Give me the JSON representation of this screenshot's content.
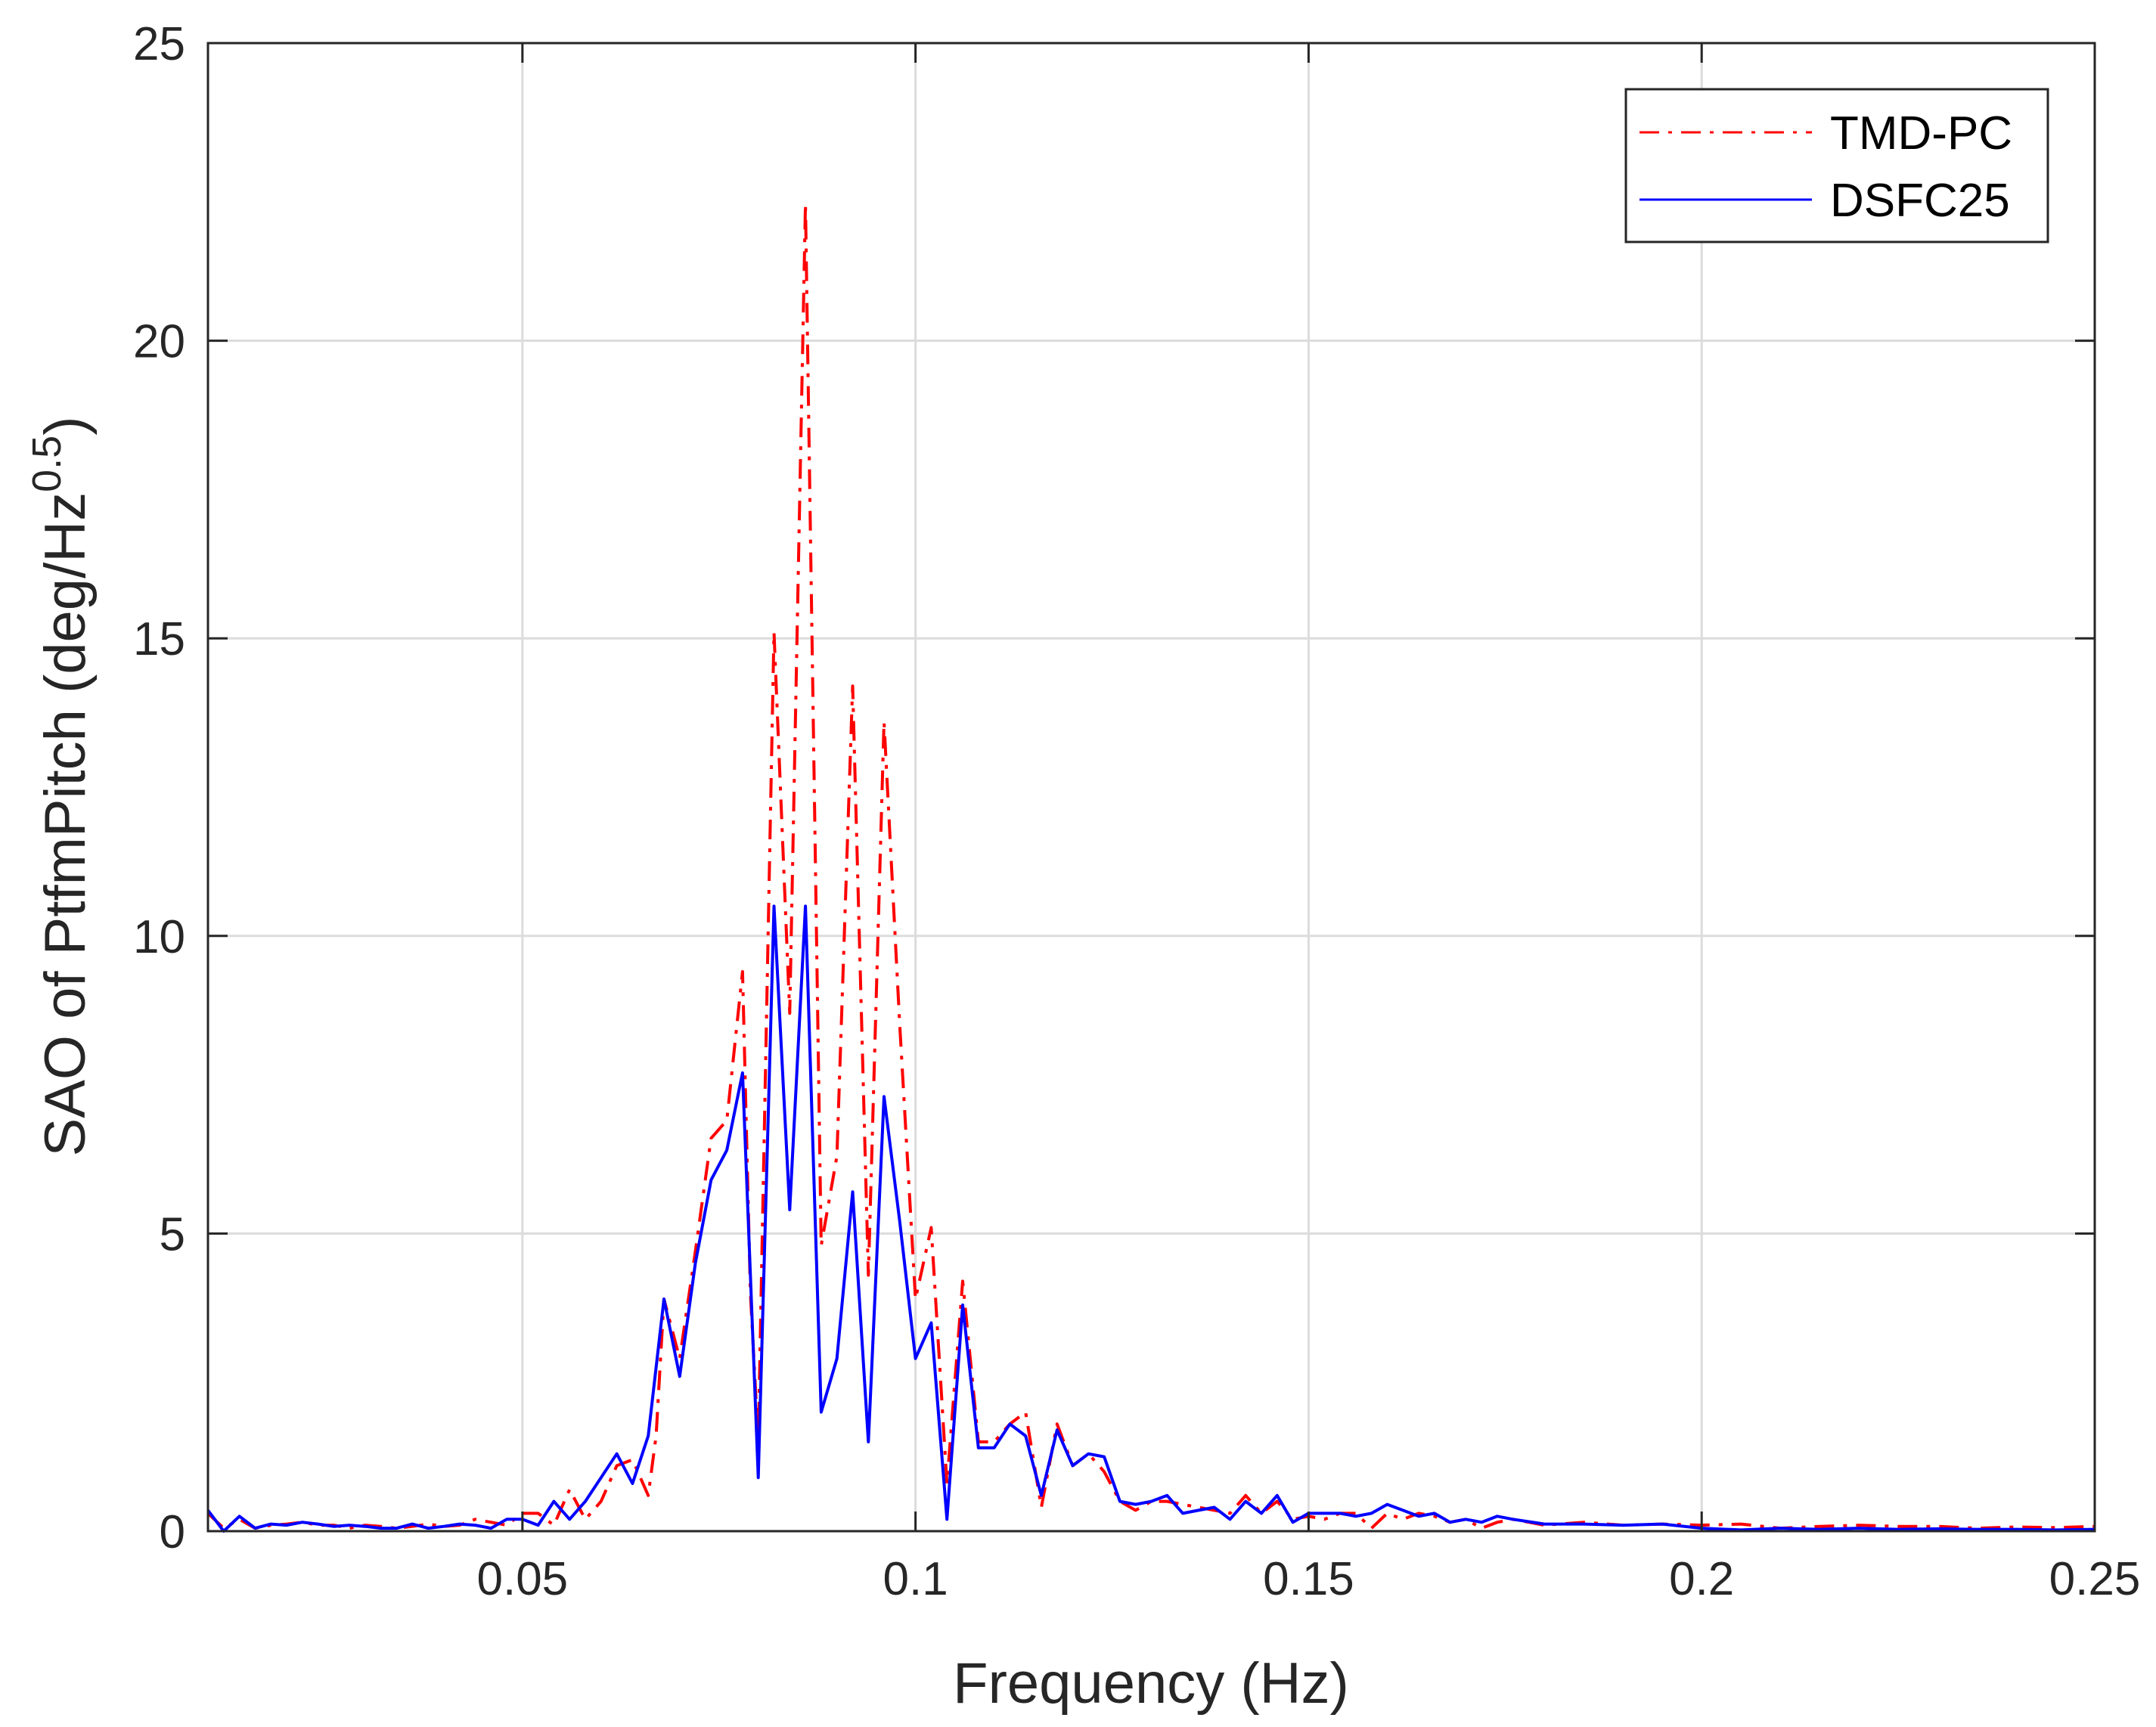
{
  "chart_data": {
    "type": "line",
    "title": "",
    "xlabel": "Frequency (Hz)",
    "ylabel": {
      "main": "SAO of PtfmPitch (deg/Hz",
      "sup": "0.5",
      "close": ")"
    },
    "xlim": [
      0.01,
      0.25
    ],
    "ylim": [
      0,
      25
    ],
    "x_ticks": [
      0.05,
      0.1,
      0.15,
      0.2,
      0.25
    ],
    "x_tick_labels": [
      "0.05",
      "0.1",
      "0.15",
      "0.2",
      "0.25"
    ],
    "y_ticks": [
      0,
      5,
      10,
      15,
      20,
      25
    ],
    "y_tick_labels": [
      "0",
      "5",
      "10",
      "15",
      "20",
      "25"
    ],
    "grid": true,
    "legend_position": "top-right",
    "series": [
      {
        "name": "TMD-PC",
        "color": "#ff0000",
        "style": "dash-dot",
        "points": [
          [
            0.01,
            0.3
          ],
          [
            0.012,
            0.05
          ],
          [
            0.014,
            0.2
          ],
          [
            0.016,
            0.05
          ],
          [
            0.018,
            0.1
          ],
          [
            0.02,
            0.12
          ],
          [
            0.022,
            0.15
          ],
          [
            0.024,
            0.1
          ],
          [
            0.026,
            0.1
          ],
          [
            0.028,
            0.05
          ],
          [
            0.03,
            0.1
          ],
          [
            0.032,
            0.08
          ],
          [
            0.034,
            0.05
          ],
          [
            0.036,
            0.08
          ],
          [
            0.038,
            0.12
          ],
          [
            0.04,
            0.08
          ],
          [
            0.042,
            0.1
          ],
          [
            0.044,
            0.2
          ],
          [
            0.046,
            0.15
          ],
          [
            0.048,
            0.1
          ],
          [
            0.05,
            0.3
          ],
          [
            0.052,
            0.3
          ],
          [
            0.054,
            0.1
          ],
          [
            0.056,
            0.7
          ],
          [
            0.058,
            0.2
          ],
          [
            0.06,
            0.5
          ],
          [
            0.062,
            1.1
          ],
          [
            0.064,
            1.2
          ],
          [
            0.066,
            0.6
          ],
          [
            0.067,
            1.6
          ],
          [
            0.068,
            3.9
          ],
          [
            0.07,
            2.9
          ],
          [
            0.072,
            4.7
          ],
          [
            0.074,
            6.6
          ],
          [
            0.076,
            6.9
          ],
          [
            0.078,
            9.4
          ],
          [
            0.079,
            4.0
          ],
          [
            0.08,
            1.5
          ],
          [
            0.082,
            15.1
          ],
          [
            0.084,
            8.7
          ],
          [
            0.086,
            22.3
          ],
          [
            0.088,
            4.8
          ],
          [
            0.09,
            6.3
          ],
          [
            0.092,
            14.2
          ],
          [
            0.094,
            4.3
          ],
          [
            0.096,
            13.6
          ],
          [
            0.098,
            8.5
          ],
          [
            0.1,
            3.9
          ],
          [
            0.102,
            5.1
          ],
          [
            0.104,
            0.8
          ],
          [
            0.106,
            4.2
          ],
          [
            0.108,
            1.5
          ],
          [
            0.11,
            1.5
          ],
          [
            0.112,
            1.8
          ],
          [
            0.114,
            2.0
          ],
          [
            0.116,
            0.4
          ],
          [
            0.118,
            1.8
          ],
          [
            0.12,
            1.1
          ],
          [
            0.122,
            1.3
          ],
          [
            0.124,
            1.0
          ],
          [
            0.126,
            0.5
          ],
          [
            0.128,
            0.35
          ],
          [
            0.13,
            0.5
          ],
          [
            0.132,
            0.5
          ],
          [
            0.134,
            0.45
          ],
          [
            0.136,
            0.4
          ],
          [
            0.138,
            0.35
          ],
          [
            0.14,
            0.3
          ],
          [
            0.142,
            0.6
          ],
          [
            0.144,
            0.3
          ],
          [
            0.146,
            0.5
          ],
          [
            0.148,
            0.2
          ],
          [
            0.15,
            0.25
          ],
          [
            0.152,
            0.2
          ],
          [
            0.154,
            0.3
          ],
          [
            0.156,
            0.3
          ],
          [
            0.158,
            0.05
          ],
          [
            0.16,
            0.3
          ],
          [
            0.162,
            0.2
          ],
          [
            0.164,
            0.3
          ],
          [
            0.166,
            0.25
          ],
          [
            0.168,
            0.15
          ],
          [
            0.17,
            0.2
          ],
          [
            0.172,
            0.05
          ],
          [
            0.174,
            0.15
          ],
          [
            0.176,
            0.2
          ],
          [
            0.18,
            0.1
          ],
          [
            0.185,
            0.15
          ],
          [
            0.19,
            0.1
          ],
          [
            0.195,
            0.12
          ],
          [
            0.2,
            0.1
          ],
          [
            0.205,
            0.12
          ],
          [
            0.21,
            0.05
          ],
          [
            0.215,
            0.08
          ],
          [
            0.22,
            0.1
          ],
          [
            0.225,
            0.08
          ],
          [
            0.23,
            0.08
          ],
          [
            0.235,
            0.05
          ],
          [
            0.24,
            0.07
          ],
          [
            0.245,
            0.06
          ],
          [
            0.25,
            0.08
          ]
        ]
      },
      {
        "name": "DSFC25",
        "color": "#0000ff",
        "style": "solid",
        "points": [
          [
            0.01,
            0.35
          ],
          [
            0.012,
            0.0
          ],
          [
            0.014,
            0.25
          ],
          [
            0.016,
            0.05
          ],
          [
            0.018,
            0.12
          ],
          [
            0.02,
            0.1
          ],
          [
            0.022,
            0.15
          ],
          [
            0.024,
            0.12
          ],
          [
            0.026,
            0.08
          ],
          [
            0.028,
            0.1
          ],
          [
            0.03,
            0.08
          ],
          [
            0.032,
            0.05
          ],
          [
            0.034,
            0.05
          ],
          [
            0.036,
            0.12
          ],
          [
            0.038,
            0.05
          ],
          [
            0.04,
            0.08
          ],
          [
            0.042,
            0.12
          ],
          [
            0.044,
            0.1
          ],
          [
            0.046,
            0.05
          ],
          [
            0.048,
            0.2
          ],
          [
            0.05,
            0.2
          ],
          [
            0.052,
            0.1
          ],
          [
            0.054,
            0.5
          ],
          [
            0.056,
            0.2
          ],
          [
            0.058,
            0.5
          ],
          [
            0.06,
            0.9
          ],
          [
            0.062,
            1.3
          ],
          [
            0.064,
            0.8
          ],
          [
            0.066,
            1.6
          ],
          [
            0.068,
            3.9
          ],
          [
            0.07,
            2.6
          ],
          [
            0.072,
            4.5
          ],
          [
            0.074,
            5.9
          ],
          [
            0.076,
            6.4
          ],
          [
            0.078,
            7.7
          ],
          [
            0.08,
            0.9
          ],
          [
            0.082,
            10.5
          ],
          [
            0.084,
            5.4
          ],
          [
            0.086,
            10.5
          ],
          [
            0.088,
            2.0
          ],
          [
            0.09,
            2.9
          ],
          [
            0.092,
            5.7
          ],
          [
            0.094,
            1.5
          ],
          [
            0.096,
            7.3
          ],
          [
            0.098,
            5.2
          ],
          [
            0.1,
            2.9
          ],
          [
            0.102,
            3.5
          ],
          [
            0.104,
            0.2
          ],
          [
            0.106,
            3.8
          ],
          [
            0.108,
            1.4
          ],
          [
            0.11,
            1.4
          ],
          [
            0.112,
            1.8
          ],
          [
            0.114,
            1.6
          ],
          [
            0.116,
            0.6
          ],
          [
            0.118,
            1.7
          ],
          [
            0.12,
            1.1
          ],
          [
            0.122,
            1.3
          ],
          [
            0.124,
            1.25
          ],
          [
            0.126,
            0.5
          ],
          [
            0.128,
            0.45
          ],
          [
            0.13,
            0.5
          ],
          [
            0.132,
            0.6
          ],
          [
            0.134,
            0.3
          ],
          [
            0.136,
            0.35
          ],
          [
            0.138,
            0.4
          ],
          [
            0.14,
            0.2
          ],
          [
            0.142,
            0.5
          ],
          [
            0.144,
            0.3
          ],
          [
            0.146,
            0.6
          ],
          [
            0.148,
            0.15
          ],
          [
            0.15,
            0.3
          ],
          [
            0.152,
            0.3
          ],
          [
            0.154,
            0.3
          ],
          [
            0.156,
            0.25
          ],
          [
            0.158,
            0.3
          ],
          [
            0.16,
            0.45
          ],
          [
            0.162,
            0.35
          ],
          [
            0.164,
            0.25
          ],
          [
            0.166,
            0.3
          ],
          [
            0.168,
            0.15
          ],
          [
            0.17,
            0.2
          ],
          [
            0.172,
            0.15
          ],
          [
            0.174,
            0.25
          ],
          [
            0.176,
            0.2
          ],
          [
            0.18,
            0.12
          ],
          [
            0.185,
            0.12
          ],
          [
            0.19,
            0.1
          ],
          [
            0.195,
            0.12
          ],
          [
            0.2,
            0.05
          ],
          [
            0.205,
            0.02
          ],
          [
            0.21,
            0.05
          ],
          [
            0.215,
            0.03
          ],
          [
            0.22,
            0.05
          ],
          [
            0.225,
            0.03
          ],
          [
            0.23,
            0.04
          ],
          [
            0.235,
            0.03
          ],
          [
            0.24,
            0.03
          ],
          [
            0.245,
            0.02
          ],
          [
            0.25,
            0.03
          ]
        ]
      }
    ]
  }
}
